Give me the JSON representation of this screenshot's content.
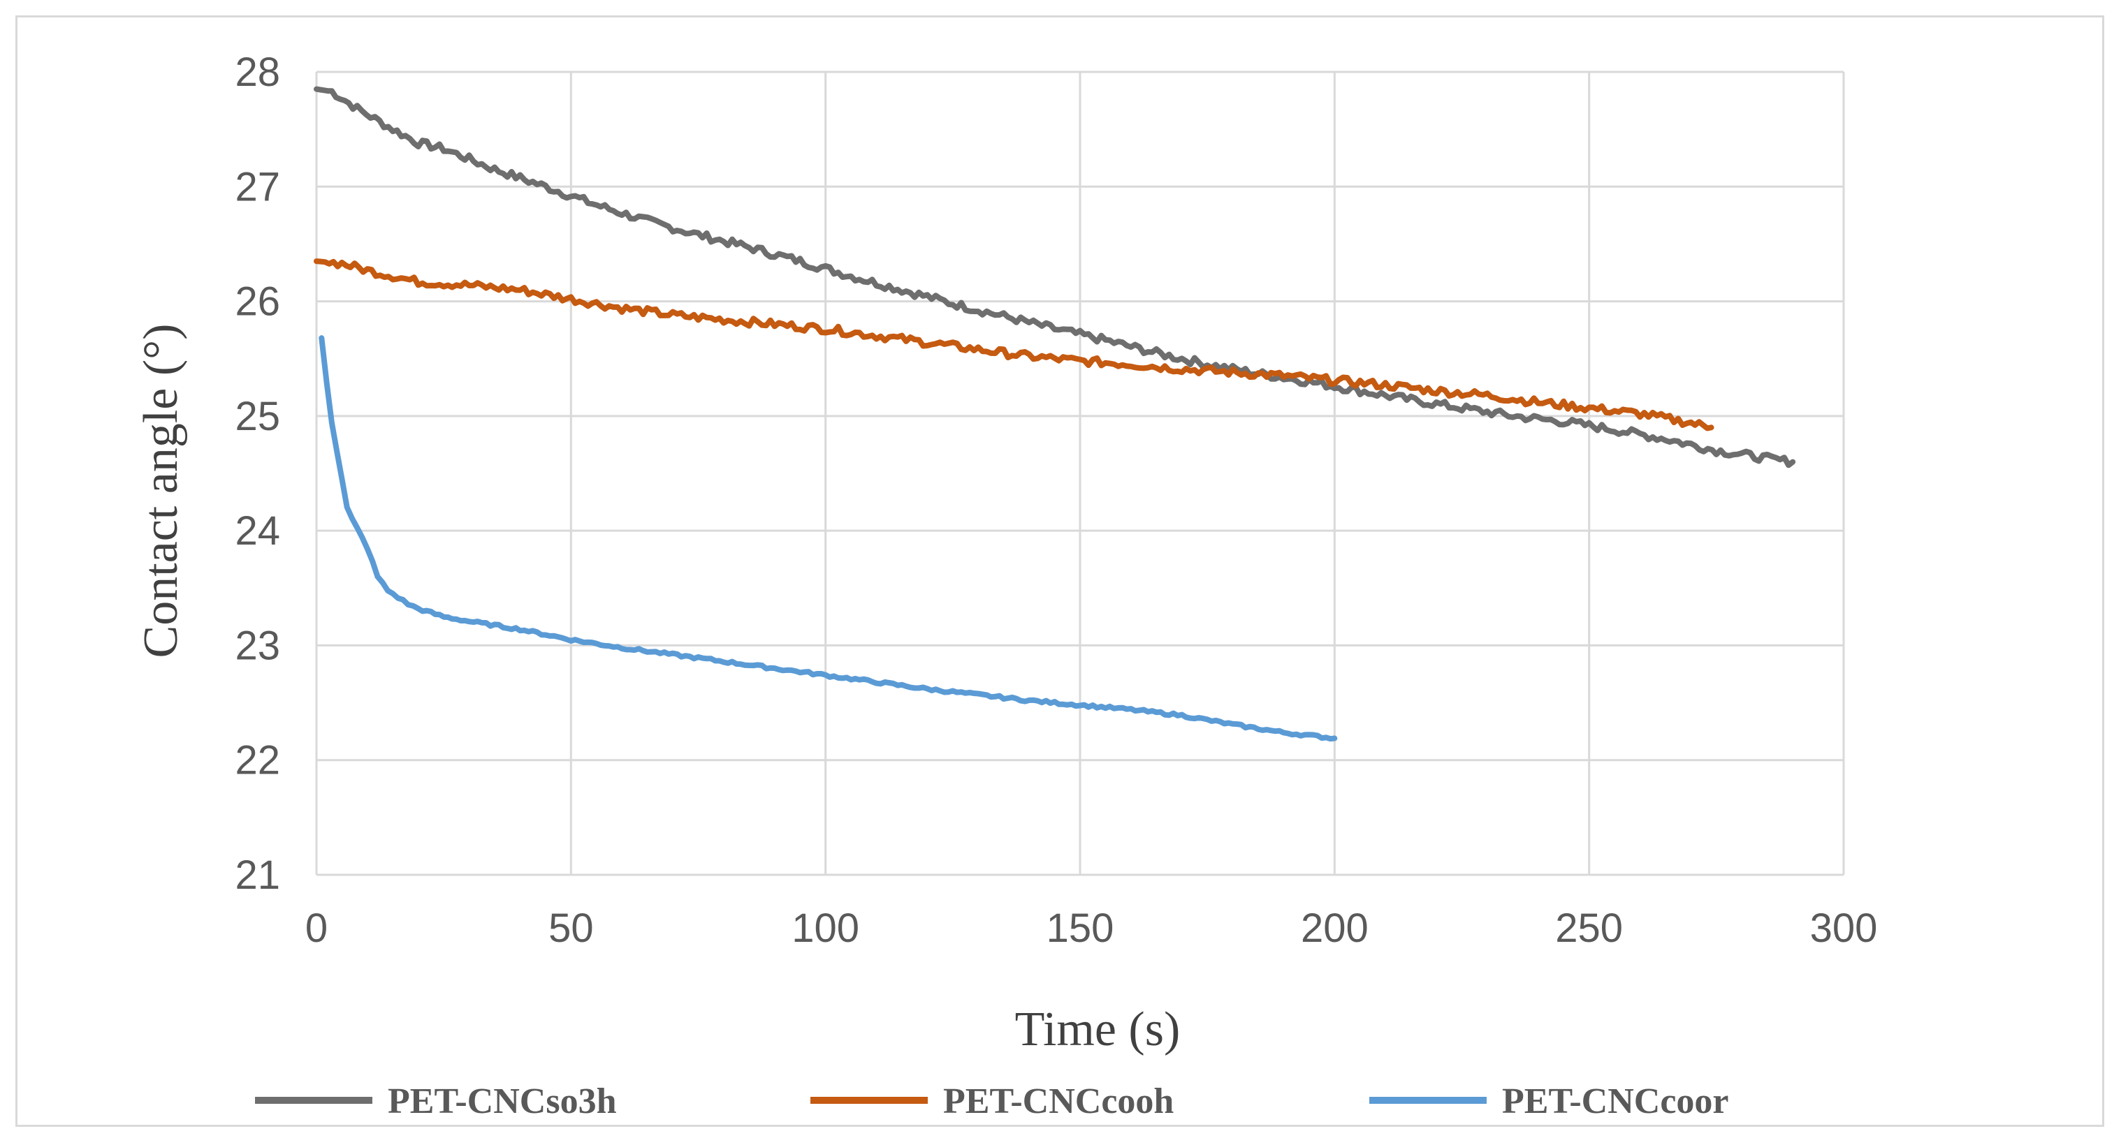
{
  "chart_data": {
    "type": "line",
    "title": "",
    "xlabel": "Time (s)",
    "ylabel": "Contact angle (°)",
    "xlim": [
      0,
      300
    ],
    "ylim": [
      21,
      28
    ],
    "x_ticks": [
      "0",
      "50",
      "100",
      "150",
      "200",
      "250",
      "300"
    ],
    "y_ticks": [
      "21",
      "22",
      "23",
      "24",
      "25",
      "26",
      "27",
      "28"
    ],
    "grid": true,
    "legend_position": "bottom",
    "series": [
      {
        "name": "PET-CNCso3h",
        "color": "#6e6e6e",
        "x": [
          0,
          3,
          8,
          15,
          20,
          25,
          35,
          45,
          55,
          65,
          75,
          85,
          95,
          105,
          115,
          125,
          135,
          145,
          155,
          165,
          175,
          185,
          195,
          205,
          215,
          225,
          235,
          245,
          255,
          265,
          275,
          285,
          290
        ],
        "y": [
          27.85,
          27.83,
          27.68,
          27.5,
          27.38,
          27.33,
          27.15,
          27.0,
          26.84,
          26.7,
          26.58,
          26.47,
          26.35,
          26.22,
          26.1,
          25.98,
          25.87,
          25.76,
          25.66,
          25.55,
          25.45,
          25.37,
          25.3,
          25.22,
          25.14,
          25.07,
          25.0,
          24.95,
          24.88,
          24.8,
          24.7,
          24.63,
          24.6
        ]
      },
      {
        "name": "PET-CNCcooh",
        "color": "#c55a11",
        "x": [
          0,
          5,
          10,
          20,
          30,
          40,
          50,
          60,
          70,
          80,
          90,
          100,
          110,
          120,
          130,
          140,
          150,
          160,
          170,
          180,
          190,
          200,
          210,
          220,
          230,
          240,
          250,
          260,
          270,
          274
        ],
        "y": [
          26.35,
          26.33,
          26.27,
          26.17,
          26.14,
          26.1,
          26.02,
          25.94,
          25.88,
          25.84,
          25.8,
          25.76,
          25.7,
          25.64,
          25.58,
          25.52,
          25.48,
          25.45,
          25.41,
          25.38,
          25.35,
          25.31,
          25.27,
          25.22,
          25.18,
          25.12,
          25.07,
          25.02,
          24.94,
          24.9
        ]
      },
      {
        "name": "PET-CNCcoor",
        "color": "#5b9bd5",
        "x": [
          1,
          2,
          3,
          4,
          5,
          6,
          7,
          8,
          10,
          12,
          14,
          16,
          18,
          20,
          25,
          30,
          40,
          50,
          60,
          70,
          80,
          90,
          100,
          110,
          120,
          130,
          140,
          150,
          160,
          170,
          180,
          190,
          200
        ],
        "y": [
          25.68,
          25.3,
          24.95,
          24.7,
          24.45,
          24.2,
          24.1,
          24.02,
          23.85,
          23.6,
          23.48,
          23.42,
          23.36,
          23.32,
          23.25,
          23.21,
          23.14,
          23.05,
          22.98,
          22.92,
          22.86,
          22.8,
          22.74,
          22.68,
          22.62,
          22.57,
          22.52,
          22.48,
          22.44,
          22.39,
          22.31,
          22.24,
          22.19
        ]
      }
    ]
  }
}
